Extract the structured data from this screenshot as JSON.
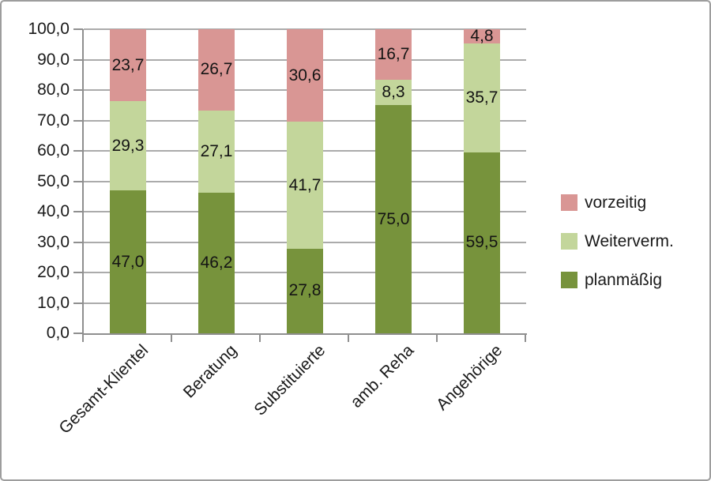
{
  "chart_data": {
    "type": "bar",
    "stacked": true,
    "percent": true,
    "title": "",
    "xlabel": "",
    "ylabel": "",
    "categories": [
      "Gesamt-Klientel",
      "Beratung",
      "Substituierte",
      "amb. Reha",
      "Angehörige"
    ],
    "series": [
      {
        "name": "planmäßig",
        "color": "#77933C",
        "values": [
          47.0,
          46.2,
          27.8,
          75.0,
          59.5
        ],
        "value_labels": [
          "47,0",
          "46,2",
          "27,8",
          "75,0",
          "59,5"
        ]
      },
      {
        "name": "Weiterverm.",
        "color": "#C3D69B",
        "values": [
          29.3,
          27.1,
          41.7,
          8.3,
          35.7
        ],
        "value_labels": [
          "29,3",
          "27,1",
          "41,7",
          "8,3",
          "35,7"
        ]
      },
      {
        "name": "vorzeitig",
        "color": "#D99694",
        "values": [
          23.7,
          26.7,
          30.6,
          16.7,
          4.8
        ],
        "value_labels": [
          "23,7",
          "26,7",
          "30,6",
          "16,7",
          "4,8"
        ]
      }
    ],
    "ylim": [
      0,
      100
    ],
    "y_step": 10,
    "y_tick_labels": [
      "0,0",
      "10,0",
      "20,0",
      "30,0",
      "40,0",
      "50,0",
      "60,0",
      "70,0",
      "80,0",
      "90,0",
      "100,0"
    ],
    "grid": true,
    "legend": {
      "position": "right",
      "items": [
        {
          "label": "vorzeitig",
          "color": "#D99694"
        },
        {
          "label": "Weiterverm.",
          "color": "#C3D69B"
        },
        {
          "label": "planmäßig",
          "color": "#77933C"
        }
      ]
    },
    "colors": {
      "background": "#ffffff",
      "frame_border": "#9d9d9d",
      "gridline": "#ababab",
      "axis": "#8f8f8f",
      "text": "#1a1a1a"
    }
  }
}
